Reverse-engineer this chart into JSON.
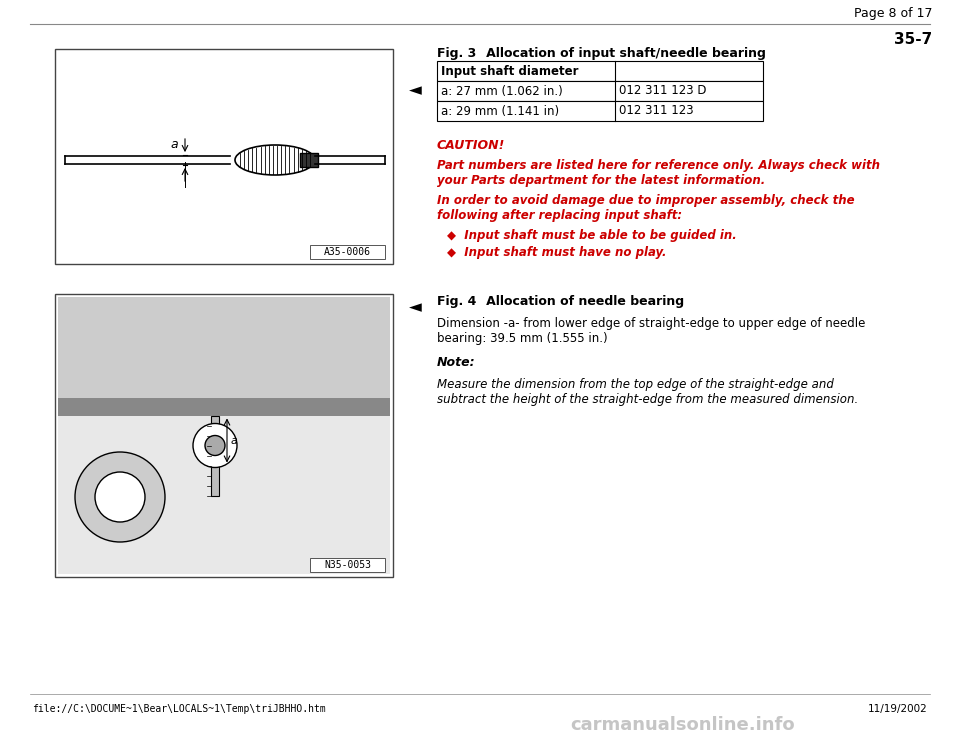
{
  "bg_color": "#ffffff",
  "page_header": "Page 8 of 17",
  "page_number": "35-7",
  "fig3_title_bold": "Fig. 3",
  "fig3_title_rest": "   Allocation of input shaft/needle bearing",
  "table_header": [
    "Input shaft diameter",
    ""
  ],
  "table_rows": [
    [
      "a: 27 mm (1.062 in.)",
      "012 311 123 D"
    ],
    [
      "a: 29 mm (1.141 in)",
      "012 311 123"
    ]
  ],
  "caution_label": "CAUTION!",
  "caution_text1": "Part numbers are listed here for reference only. Always check with",
  "caution_text2": "your Parts department for the latest information.",
  "caution_text3": "In order to avoid damage due to improper assembly, check the",
  "caution_text4": "following after replacing input shaft:",
  "bullet1": "◆  Input shaft must be able to be guided in.",
  "bullet2": "◆  Input shaft must have no play.",
  "fig4_title_bold": "Fig. 4",
  "fig4_title_rest": "   Allocation of needle bearing",
  "fig4_text1": "Dimension -a- from lower edge of straight-edge to upper edge of needle",
  "fig4_text2": "bearing: 39.5 mm (1.555 in.)",
  "note_label": "Note:",
  "note_text1": "Measure the dimension from the top edge of the straight-edge and",
  "note_text2": "subtract the height of the straight-edge from the measured dimension.",
  "img1_label": "A35-0006",
  "img2_label": "N35-0053",
  "footer_text": "file://C:\\DOCUME~1\\Bear\\LOCALS~1\\Temp\\triJBHHO.htm",
  "footer_date": "11/19/2002",
  "watermark": "carmanualsonline.info",
  "red_color": "#cc0000",
  "black_color": "#000000"
}
